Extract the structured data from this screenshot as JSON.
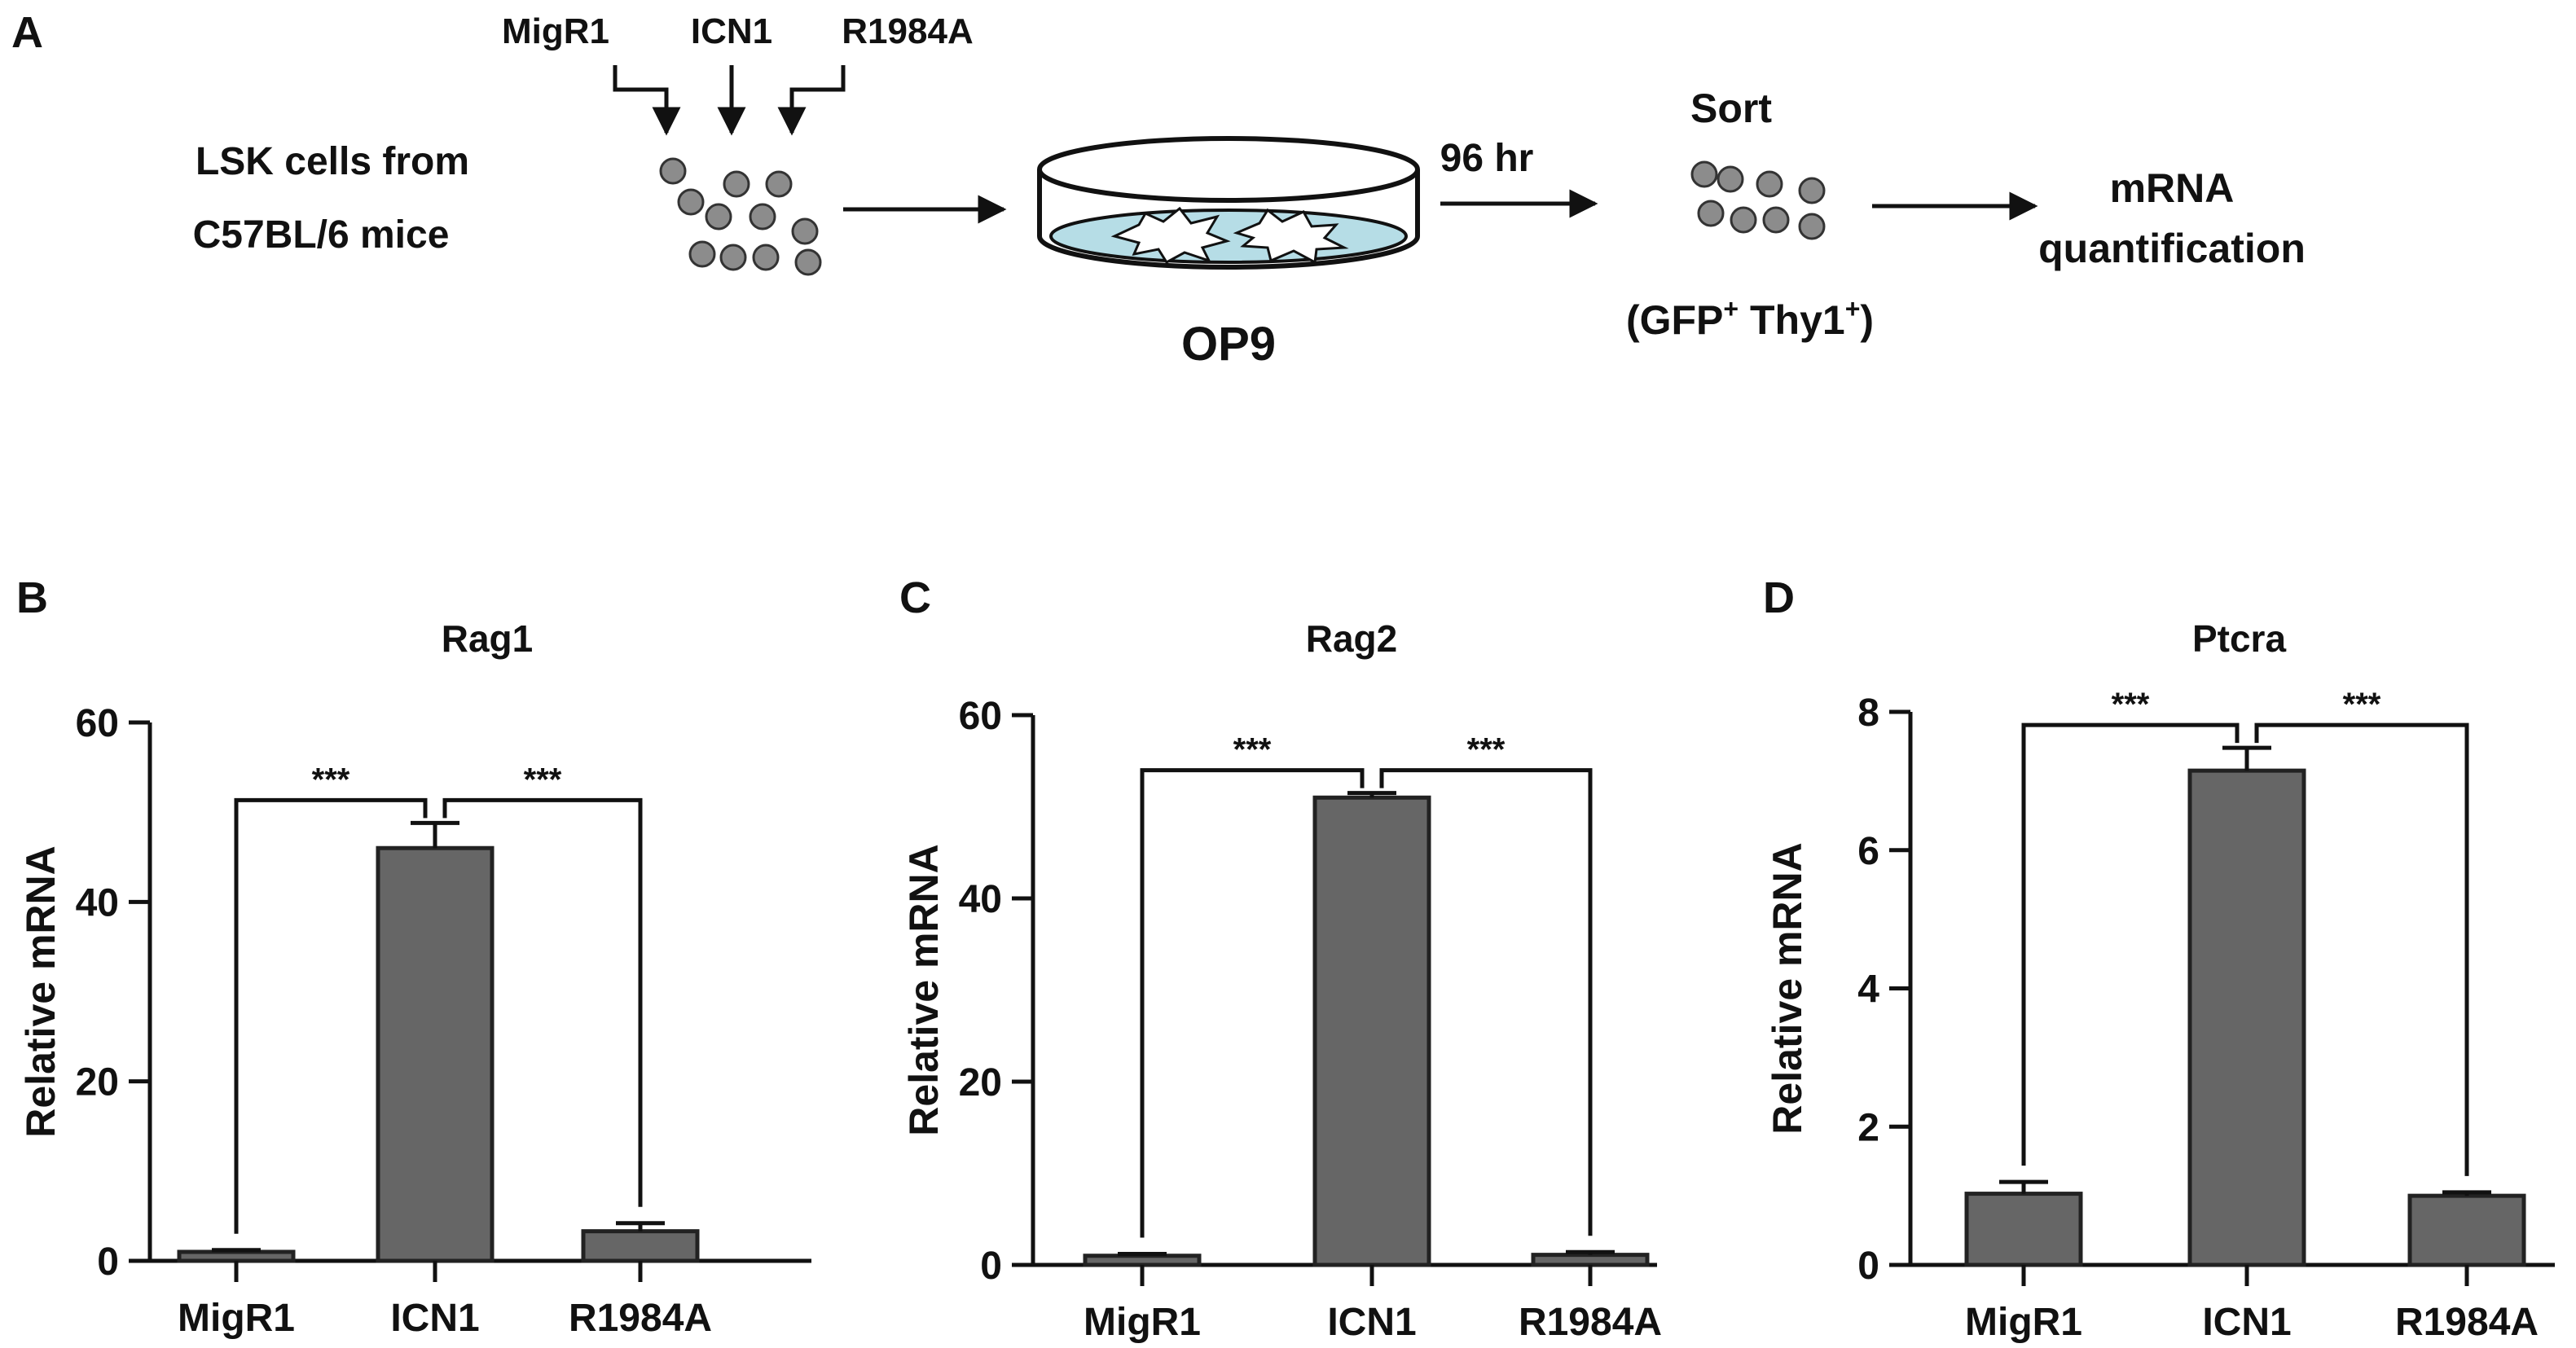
{
  "schematic": {
    "panel_label": "A",
    "source_line1": "LSK  cells  from",
    "source_line2": "C57BL/6 mice",
    "constructs": [
      "MigR1",
      "ICN1",
      "R1984A"
    ],
    "culture_label": "OP9",
    "time_label": "96 hr",
    "sort_label": "Sort",
    "sort_gate": {
      "open": "(GFP",
      "mid": " Thy1",
      "close": ")",
      "sup": "+"
    },
    "readout_line1": "mRNA",
    "readout_line2": "quantification"
  },
  "colors": {
    "bar": "#666666",
    "cell": "#8c8c8c",
    "dish_medium": "#b6dde6",
    "ink": "#111111"
  },
  "chart_data": [
    {
      "panel": "B",
      "type": "bar",
      "title": "Rag1",
      "ylabel": "Relative mRNA",
      "categories": [
        "MigR1",
        "ICN1",
        "R1984A"
      ],
      "values": [
        1,
        46,
        3.3
      ],
      "errors": [
        0.2,
        2.8,
        0.9
      ],
      "ylim": [
        0,
        60
      ],
      "yticks": [
        0,
        20,
        40,
        60
      ],
      "significance": [
        {
          "from": 0,
          "to": 1,
          "label": "***"
        },
        {
          "from": 2,
          "to": 1,
          "label": "***"
        }
      ]
    },
    {
      "panel": "C",
      "type": "bar",
      "title": "Rag2",
      "ylabel": "Relative mRNA",
      "categories": [
        "MigR1",
        "ICN1",
        "R1984A"
      ],
      "values": [
        1,
        51,
        1.1
      ],
      "errors": [
        0.2,
        0.5,
        0.3
      ],
      "ylim": [
        0,
        60
      ],
      "yticks": [
        0,
        20,
        40,
        60
      ],
      "significance": [
        {
          "from": 0,
          "to": 1,
          "label": "***"
        },
        {
          "from": 2,
          "to": 1,
          "label": "***"
        }
      ]
    },
    {
      "panel": "D",
      "type": "bar",
      "title": "Ptcra",
      "ylabel": "Relative mRNA",
      "categories": [
        "MigR1",
        "ICN1",
        "R1984A"
      ],
      "values": [
        1.03,
        7.15,
        1.0
      ],
      "errors": [
        0.17,
        0.33,
        0.05
      ],
      "ylim": [
        0,
        8
      ],
      "yticks": [
        0,
        2,
        4,
        6,
        8
      ],
      "significance": [
        {
          "from": 0,
          "to": 1,
          "label": "***"
        },
        {
          "from": 2,
          "to": 1,
          "label": "***"
        }
      ]
    }
  ]
}
